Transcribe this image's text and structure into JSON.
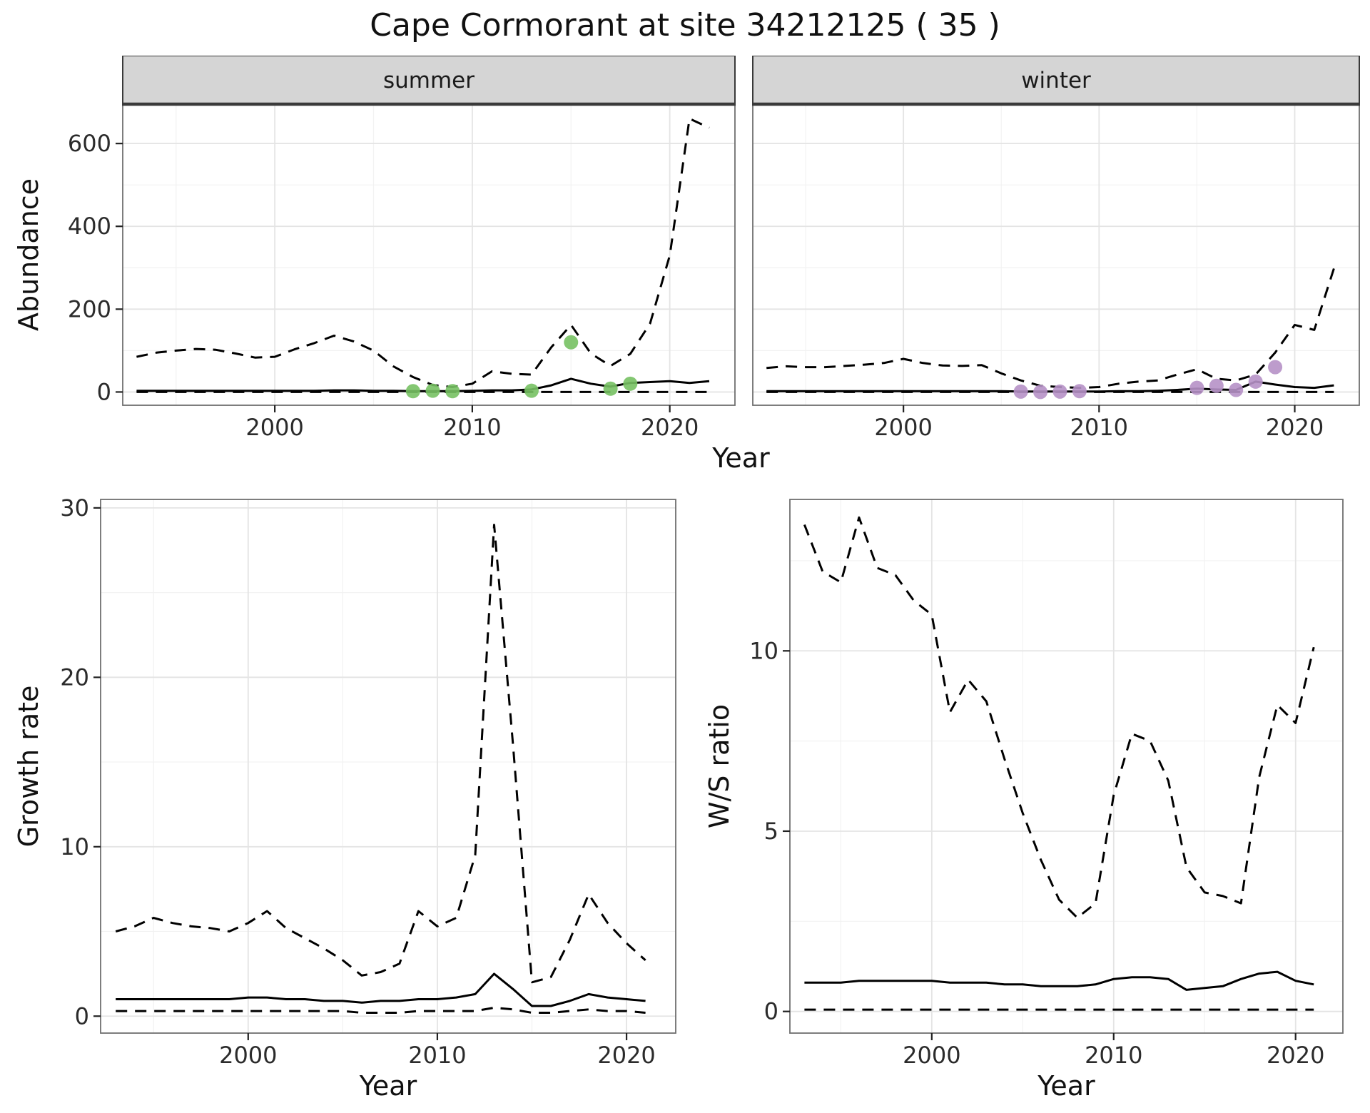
{
  "title": "Cape Cormorant at site 34212125 ( 35 )",
  "axis_labels": {
    "abundance_y": "Abundance",
    "abundance_x": "Year",
    "growth_y": "Growth rate",
    "growth_x": "Year",
    "ratio_y": "W/S ratio",
    "ratio_x": "Year"
  },
  "facets": [
    {
      "label": "summer"
    },
    {
      "label": "winter"
    }
  ],
  "colors": {
    "summer_dot": "#77c163",
    "winter_dot": "#b691c6",
    "line": "#000000",
    "grid_major": "#e4e4e4",
    "grid_minor": "#f2f2f2",
    "panel_border": "#6f6f6f",
    "strip_bg": "#d5d5d5",
    "strip_border": "#3a3a3a",
    "tick_text": "#2b2b2b"
  },
  "chart_data": [
    {
      "id": "abundance-summer",
      "type": "line",
      "facet_label": "summer",
      "xlabel": "Year",
      "ylabel": "Abundance",
      "xlim": [
        1992.3,
        2023.3
      ],
      "ylim": [
        -32,
        695
      ],
      "xticks": [
        2000,
        2010,
        2020
      ],
      "yticks": [
        0,
        200,
        400,
        600
      ],
      "years": [
        1993,
        1994,
        1995,
        1996,
        1997,
        1998,
        1999,
        2000,
        2001,
        2002,
        2003,
        2004,
        2005,
        2006,
        2007,
        2008,
        2009,
        2010,
        2011,
        2012,
        2013,
        2014,
        2015,
        2016,
        2017,
        2018,
        2019,
        2020,
        2021,
        2022
      ],
      "series": [
        {
          "name": "upper_95ci",
          "style": "dashed",
          "values": [
            85,
            95,
            100,
            104,
            102,
            93,
            83,
            85,
            103,
            118,
            136,
            122,
            100,
            62,
            36,
            17,
            12,
            20,
            50,
            44,
            42,
            108,
            162,
            93,
            63,
            92,
            165,
            330,
            660,
            638
          ]
        },
        {
          "name": "lower_95ci",
          "style": "dashed",
          "values": [
            0,
            0,
            0,
            0,
            0,
            0,
            0,
            0,
            0,
            0,
            0,
            0,
            0,
            0,
            0,
            0,
            0,
            0,
            0,
            0,
            0,
            0,
            0,
            0,
            0,
            0,
            0,
            0,
            0,
            0
          ]
        },
        {
          "name": "median",
          "style": "solid",
          "values": [
            3,
            3,
            3,
            3,
            3,
            3,
            3,
            3,
            3,
            3,
            4,
            4,
            3,
            3,
            2,
            2,
            2,
            3,
            4,
            4,
            6,
            16,
            32,
            20,
            13,
            22,
            24,
            26,
            22,
            26
          ]
        },
        {
          "name": "observed_counts",
          "style": "points",
          "color": "#77c163",
          "x": [
            2007,
            2008,
            2009,
            2013,
            2015,
            2017,
            2018
          ],
          "values": [
            2,
            3,
            2,
            3,
            120,
            8,
            20
          ]
        }
      ]
    },
    {
      "id": "abundance-winter",
      "type": "line",
      "facet_label": "winter",
      "xlabel": "Year",
      "ylabel": "Abundance",
      "xlim": [
        1992.3,
        2023.3
      ],
      "ylim": [
        -32,
        695
      ],
      "xticks": [
        2000,
        2010,
        2020
      ],
      "yticks": [
        0,
        200,
        400,
        600
      ],
      "years": [
        1993,
        1994,
        1995,
        1996,
        1997,
        1998,
        1999,
        2000,
        2001,
        2002,
        2003,
        2004,
        2005,
        2006,
        2007,
        2008,
        2009,
        2010,
        2011,
        2012,
        2013,
        2014,
        2015,
        2016,
        2017,
        2018,
        2019,
        2020,
        2021,
        2022
      ],
      "series": [
        {
          "name": "upper_95ci",
          "style": "dashed",
          "values": [
            58,
            62,
            60,
            60,
            63,
            66,
            70,
            80,
            70,
            64,
            63,
            65,
            45,
            28,
            15,
            12,
            10,
            12,
            20,
            25,
            28,
            42,
            55,
            32,
            28,
            42,
            95,
            162,
            150,
            298
          ]
        },
        {
          "name": "lower_95ci",
          "style": "dashed",
          "values": [
            0,
            0,
            0,
            0,
            0,
            0,
            0,
            0,
            0,
            0,
            0,
            0,
            0,
            0,
            0,
            0,
            0,
            0,
            0,
            0,
            0,
            0,
            0,
            0,
            0,
            0,
            0,
            0,
            0,
            0
          ]
        },
        {
          "name": "median",
          "style": "solid",
          "values": [
            2,
            2,
            2,
            2,
            2,
            2,
            2,
            2,
            2,
            2,
            2,
            2,
            2,
            1,
            1,
            1,
            1,
            1,
            2,
            2,
            3,
            5,
            8,
            6,
            5,
            25,
            18,
            12,
            10,
            16
          ]
        },
        {
          "name": "observed_counts",
          "style": "points",
          "color": "#b691c6",
          "x": [
            2006,
            2007,
            2008,
            2009,
            2015,
            2016,
            2017,
            2018,
            2019
          ],
          "values": [
            1,
            0,
            1,
            2,
            10,
            15,
            5,
            25,
            60
          ]
        }
      ]
    },
    {
      "id": "growth-rate",
      "type": "line",
      "facet_label": "",
      "xlabel": "Year",
      "ylabel": "Growth rate",
      "xlim": [
        1992.2,
        2022.6
      ],
      "ylim": [
        -1,
        30.5
      ],
      "xticks": [
        2000,
        2010,
        2020
      ],
      "yticks": [
        0,
        10,
        20,
        30
      ],
      "years": [
        1993,
        1994,
        1995,
        1996,
        1997,
        1998,
        1999,
        2000,
        2001,
        2002,
        2003,
        2004,
        2005,
        2006,
        2007,
        2008,
        2009,
        2010,
        2011,
        2012,
        2013,
        2014,
        2015,
        2016,
        2017,
        2018,
        2019,
        2020,
        2021
      ],
      "series": [
        {
          "name": "upper_95ci",
          "style": "dashed",
          "values": [
            5,
            5.3,
            5.8,
            5.5,
            5.3,
            5.2,
            5,
            5.5,
            6.2,
            5.2,
            4.6,
            4,
            3.3,
            2.4,
            2.6,
            3.1,
            6.2,
            5.3,
            5.8,
            9.5,
            29,
            16,
            2,
            2.3,
            4.5,
            7.2,
            5.5,
            4.3,
            3.3
          ]
        },
        {
          "name": "lower_95ci",
          "style": "dashed",
          "values": [
            0.3,
            0.3,
            0.3,
            0.3,
            0.3,
            0.3,
            0.3,
            0.3,
            0.3,
            0.3,
            0.3,
            0.3,
            0.3,
            0.2,
            0.2,
            0.2,
            0.3,
            0.3,
            0.3,
            0.3,
            0.5,
            0.4,
            0.2,
            0.2,
            0.3,
            0.4,
            0.3,
            0.3,
            0.2
          ]
        },
        {
          "name": "median",
          "style": "solid",
          "values": [
            1,
            1,
            1,
            1,
            1,
            1,
            1,
            1.1,
            1.1,
            1,
            1,
            0.9,
            0.9,
            0.8,
            0.9,
            0.9,
            1,
            1,
            1.1,
            1.3,
            2.5,
            1.6,
            0.6,
            0.6,
            0.9,
            1.3,
            1.1,
            1,
            0.9
          ]
        }
      ]
    },
    {
      "id": "ws-ratio",
      "type": "line",
      "facet_label": "",
      "xlabel": "Year",
      "ylabel": "W/S ratio",
      "xlim": [
        1992.2,
        2022.6
      ],
      "ylim": [
        -0.6,
        14.2
      ],
      "xticks": [
        2000,
        2010,
        2020
      ],
      "yticks": [
        0,
        5,
        10
      ],
      "years": [
        1993,
        1994,
        1995,
        1996,
        1997,
        1998,
        1999,
        2000,
        2001,
        2002,
        2003,
        2004,
        2005,
        2006,
        2007,
        2008,
        2009,
        2010,
        2011,
        2012,
        2013,
        2014,
        2015,
        2016,
        2017,
        2018,
        2019,
        2020,
        2021
      ],
      "series": [
        {
          "name": "upper_95ci",
          "style": "dashed",
          "values": [
            13.5,
            12.2,
            11.9,
            13.7,
            12.3,
            12.1,
            11.4,
            11,
            8.3,
            9.2,
            8.6,
            7,
            5.5,
            4.2,
            3.1,
            2.6,
            3,
            6,
            7.7,
            7.5,
            6.4,
            4,
            3.3,
            3.2,
            3,
            6.5,
            8.5,
            8,
            10.1
          ]
        },
        {
          "name": "lower_95ci",
          "style": "dashed",
          "values": [
            0.05,
            0.05,
            0.05,
            0.05,
            0.05,
            0.05,
            0.05,
            0.05,
            0.05,
            0.05,
            0.05,
            0.05,
            0.05,
            0.05,
            0.05,
            0.05,
            0.05,
            0.05,
            0.05,
            0.05,
            0.05,
            0.05,
            0.05,
            0.05,
            0.05,
            0.05,
            0.05,
            0.05,
            0.05
          ]
        },
        {
          "name": "median",
          "style": "solid",
          "values": [
            0.8,
            0.8,
            0.8,
            0.85,
            0.85,
            0.85,
            0.85,
            0.85,
            0.8,
            0.8,
            0.8,
            0.75,
            0.75,
            0.7,
            0.7,
            0.7,
            0.75,
            0.9,
            0.95,
            0.95,
            0.9,
            0.6,
            0.65,
            0.7,
            0.9,
            1.05,
            1.1,
            0.85,
            0.75
          ]
        }
      ]
    }
  ]
}
